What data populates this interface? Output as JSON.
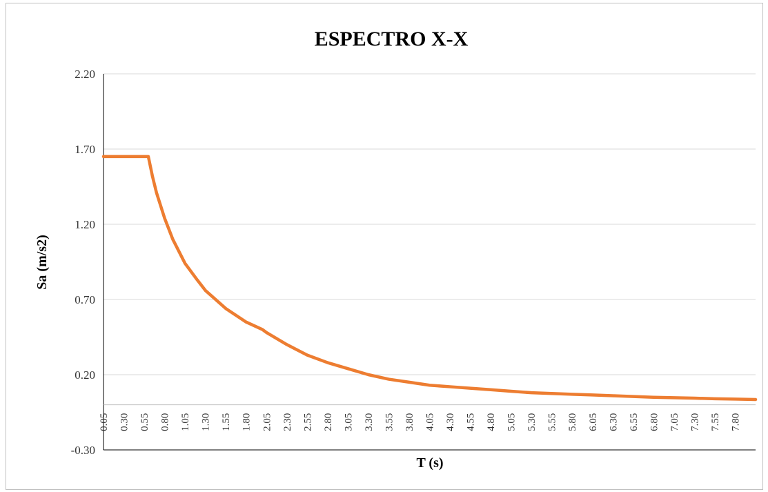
{
  "chart_data": {
    "type": "line",
    "title": "ESPECTRO X-X",
    "xlabel": "T (s)",
    "ylabel": "Sa (m/s2)",
    "ylim": [
      -0.3,
      2.2
    ],
    "yticks": [
      "2.20",
      "1.70",
      "1.20",
      "0.70",
      "0.20",
      "-0.30"
    ],
    "ytick_values": [
      2.2,
      1.7,
      1.2,
      0.7,
      0.2,
      -0.3
    ],
    "x_tick_labels": [
      "0.05",
      "0.30",
      "0.55",
      "0.80",
      "1.05",
      "1.30",
      "1.55",
      "1.80",
      "2.05",
      "2.30",
      "2.55",
      "2.80",
      "3.05",
      "3.30",
      "3.55",
      "3.80",
      "4.05",
      "4.30",
      "4.55",
      "4.80",
      "5.05",
      "5.30",
      "5.55",
      "5.80",
      "6.05",
      "6.30",
      "6.55",
      "6.80",
      "7.05",
      "7.30",
      "7.55",
      "7.80"
    ],
    "xlim": [
      0.05,
      8.05
    ],
    "grid": "horizontal",
    "series": [
      {
        "color": "#ed7d31",
        "x": [
          0.05,
          0.3,
          0.55,
          0.6,
          0.65,
          0.7,
          0.8,
          0.9,
          1.05,
          1.2,
          1.3,
          1.55,
          1.8,
          2.0,
          2.05,
          2.3,
          2.55,
          2.8,
          3.05,
          3.3,
          3.55,
          3.8,
          4.05,
          4.3,
          4.55,
          4.8,
          5.05,
          5.3,
          5.55,
          5.8,
          6.05,
          6.3,
          6.55,
          6.8,
          7.05,
          7.3,
          7.55,
          7.8,
          8.05
        ],
        "values": [
          1.65,
          1.65,
          1.65,
          1.65,
          1.52,
          1.41,
          1.24,
          1.1,
          0.94,
          0.83,
          0.76,
          0.64,
          0.55,
          0.5,
          0.48,
          0.4,
          0.33,
          0.28,
          0.24,
          0.2,
          0.17,
          0.15,
          0.13,
          0.12,
          0.11,
          0.1,
          0.09,
          0.08,
          0.075,
          0.07,
          0.065,
          0.06,
          0.055,
          0.05,
          0.047,
          0.044,
          0.04,
          0.038,
          0.035
        ]
      }
    ]
  }
}
